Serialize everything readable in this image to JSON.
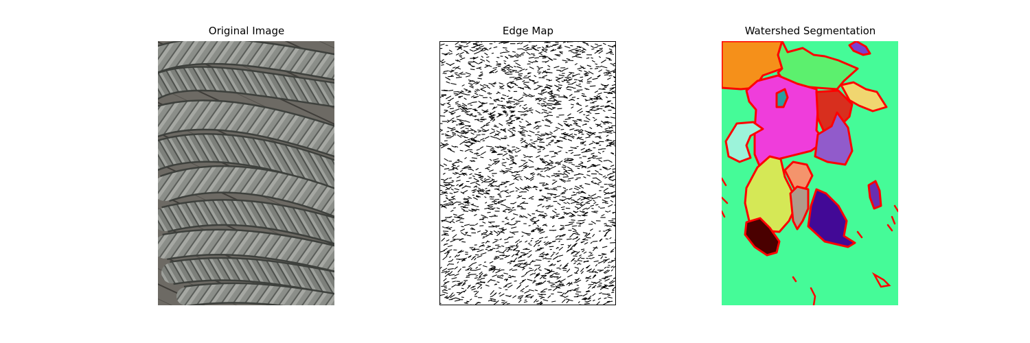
{
  "figure": {
    "panels": [
      {
        "title": "Original Image"
      },
      {
        "title": "Edge Map"
      },
      {
        "title": "Watershed Segmentation"
      }
    ]
  },
  "palette": {
    "background": "#ffffff",
    "rope_gray": "#8a8d88",
    "rope_dark": "#4c4f4b",
    "deck_wood": "#6f6c66",
    "edge_black": "#000000",
    "seg_background": "#45fb98",
    "seg_boundary": "#ff0000",
    "seg_orange": "#f5901a",
    "seg_light_green": "#5cf06e",
    "seg_magenta": "#ef3ddb",
    "seg_red": "#d82f1e",
    "seg_yellow_tan": "#f0d670",
    "seg_purple": "#915bcb",
    "seg_mint": "#9cf3da",
    "seg_lime_yellow": "#d5e856",
    "seg_dark_purple": "#420996",
    "seg_dark_red": "#4a0000",
    "seg_salmon": "#f4946c",
    "seg_teal": "#2a9ea0"
  }
}
